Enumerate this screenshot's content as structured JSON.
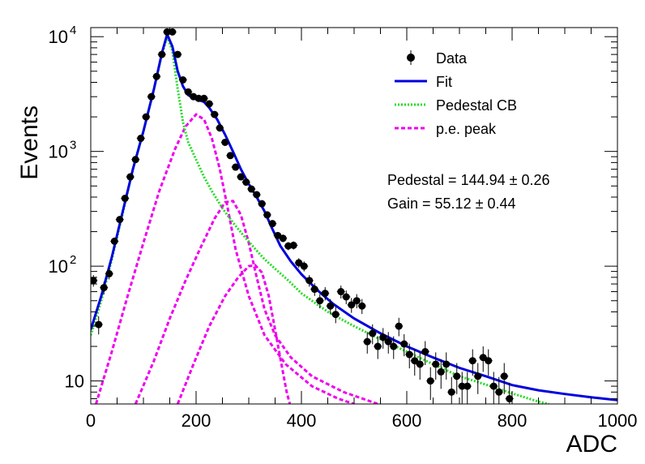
{
  "chart_data": {
    "type": "scatter",
    "title": "",
    "xlabel": "ADC",
    "ylabel": "Events",
    "xlim": [
      0,
      1000
    ],
    "ylim": [
      6.3,
      12000
    ],
    "yscale": "log",
    "grid": false,
    "legend_position": "top-right",
    "x_ticks": [
      {
        "value": 0,
        "label": "0"
      },
      {
        "value": 200,
        "label": "200"
      },
      {
        "value": 400,
        "label": "400"
      },
      {
        "value": 600,
        "label": "600"
      },
      {
        "value": 800,
        "label": "800"
      },
      {
        "value": 1000,
        "label": "1000"
      }
    ],
    "y_ticks": [
      {
        "value": 10,
        "base": "10",
        "exp": ""
      },
      {
        "value": 100,
        "base": "10",
        "exp": "2"
      },
      {
        "value": 1000,
        "base": "10",
        "exp": "3"
      },
      {
        "value": 10000,
        "base": "10",
        "exp": "4"
      }
    ],
    "legend": [
      {
        "label": "Data",
        "style": "marker",
        "color": "#000000"
      },
      {
        "label": "Fit",
        "style": "solid",
        "color": "#0000dd"
      },
      {
        "label": "Pedestal CB",
        "style": "dotted",
        "color": "#22dd22"
      },
      {
        "label": "p.e. peak",
        "style": "dashed",
        "color": "#ee00ee"
      }
    ],
    "annotations": [
      "Pedestal = 144.94 ± 0.26",
      "Gain = 55.12 ± 0.44"
    ],
    "data": {
      "name": "Data",
      "color": "#000000",
      "points": [
        [
          5,
          75
        ],
        [
          15,
          31
        ],
        [
          25,
          65
        ],
        [
          35,
          86
        ],
        [
          45,
          165
        ],
        [
          55,
          255
        ],
        [
          65,
          390
        ],
        [
          75,
          600
        ],
        [
          85,
          850
        ],
        [
          95,
          1300
        ],
        [
          105,
          2000
        ],
        [
          115,
          3000
        ],
        [
          125,
          4500
        ],
        [
          135,
          7000
        ],
        [
          145,
          11000
        ],
        [
          155,
          11000
        ],
        [
          165,
          7000
        ],
        [
          175,
          4200
        ],
        [
          185,
          3300
        ],
        [
          195,
          3000
        ],
        [
          205,
          2900
        ],
        [
          215,
          2900
        ],
        [
          225,
          2600
        ],
        [
          235,
          2100
        ],
        [
          245,
          1600
        ],
        [
          255,
          1200
        ],
        [
          265,
          920
        ],
        [
          275,
          730
        ],
        [
          285,
          600
        ],
        [
          295,
          540
        ],
        [
          305,
          470
        ],
        [
          315,
          420
        ],
        [
          325,
          350
        ],
        [
          335,
          280
        ],
        [
          345,
          235
        ],
        [
          355,
          185
        ],
        [
          365,
          175
        ],
        [
          375,
          150
        ],
        [
          385,
          152
        ],
        [
          395,
          107
        ],
        [
          405,
          100
        ],
        [
          415,
          75
        ],
        [
          425,
          63
        ],
        [
          435,
          50
        ],
        [
          445,
          58
        ],
        [
          455,
          45
        ],
        [
          465,
          38
        ],
        [
          475,
          60
        ],
        [
          485,
          54
        ],
        [
          495,
          46
        ],
        [
          505,
          50
        ],
        [
          515,
          45
        ],
        [
          525,
          22
        ],
        [
          535,
          26
        ],
        [
          545,
          20
        ],
        [
          555,
          24
        ],
        [
          565,
          22
        ],
        [
          575,
          20
        ],
        [
          585,
          30
        ],
        [
          595,
          21
        ],
        [
          605,
          17
        ],
        [
          615,
          15
        ],
        [
          625,
          14
        ],
        [
          635,
          18
        ],
        [
          645,
          10
        ],
        [
          655,
          14
        ],
        [
          665,
          12
        ],
        [
          675,
          14
        ],
        [
          685,
          8
        ],
        [
          695,
          11
        ],
        [
          705,
          9
        ],
        [
          715,
          9
        ],
        [
          725,
          15
        ],
        [
          735,
          11
        ],
        [
          745,
          16
        ],
        [
          755,
          15
        ],
        [
          765,
          9
        ],
        [
          775,
          8
        ],
        [
          785,
          11
        ],
        [
          795,
          7
        ]
      ]
    },
    "fit": {
      "name": "Fit",
      "color": "#0000dd",
      "points": [
        [
          0,
          28
        ],
        [
          20,
          55
        ],
        [
          40,
          120
        ],
        [
          60,
          290
        ],
        [
          80,
          700
        ],
        [
          100,
          1500
        ],
        [
          120,
          3500
        ],
        [
          135,
          7200
        ],
        [
          145,
          10500
        ],
        [
          155,
          8200
        ],
        [
          165,
          5000
        ],
        [
          175,
          3700
        ],
        [
          185,
          3100
        ],
        [
          195,
          2900
        ],
        [
          205,
          2800
        ],
        [
          215,
          2700
        ],
        [
          225,
          2400
        ],
        [
          240,
          1900
        ],
        [
          255,
          1400
        ],
        [
          270,
          1000
        ],
        [
          285,
          700
        ],
        [
          300,
          520
        ],
        [
          315,
          400
        ],
        [
          330,
          300
        ],
        [
          345,
          210
        ],
        [
          360,
          150
        ],
        [
          380,
          110
        ],
        [
          400,
          85
        ],
        [
          430,
          62
        ],
        [
          460,
          47
        ],
        [
          500,
          35
        ],
        [
          550,
          26
        ],
        [
          600,
          20
        ],
        [
          650,
          16
        ],
        [
          700,
          13
        ],
        [
          750,
          11
        ],
        [
          800,
          9.2
        ],
        [
          850,
          8.3
        ],
        [
          900,
          7.7
        ],
        [
          950,
          7.2
        ],
        [
          1000,
          6.8
        ]
      ]
    },
    "pedestal_cb": {
      "name": "Pedestal CB",
      "color": "#22dd22",
      "points": [
        [
          0,
          25
        ],
        [
          20,
          50
        ],
        [
          40,
          115
        ],
        [
          60,
          280
        ],
        [
          80,
          700
        ],
        [
          100,
          1500
        ],
        [
          120,
          3500
        ],
        [
          135,
          7000
        ],
        [
          145,
          10000
        ],
        [
          155,
          7500
        ],
        [
          165,
          3500
        ],
        [
          175,
          1800
        ],
        [
          185,
          1200
        ],
        [
          200,
          850
        ],
        [
          215,
          600
        ],
        [
          230,
          450
        ],
        [
          250,
          320
        ],
        [
          270,
          240
        ],
        [
          290,
          185
        ],
        [
          310,
          145
        ],
        [
          330,
          115
        ],
        [
          350,
          95
        ],
        [
          375,
          75
        ],
        [
          400,
          58
        ],
        [
          450,
          40
        ],
        [
          500,
          30
        ],
        [
          550,
          23
        ],
        [
          600,
          18
        ],
        [
          650,
          14
        ],
        [
          700,
          11
        ],
        [
          750,
          9.3
        ],
        [
          800,
          7.8
        ],
        [
          850,
          6.6
        ],
        [
          870,
          6.3
        ]
      ]
    },
    "pe_peaks": [
      {
        "name": "p.e. peak",
        "color": "#ee00ee",
        "points": [
          [
            10,
            6.3
          ],
          [
            40,
            18
          ],
          [
            70,
            55
          ],
          [
            100,
            160
          ],
          [
            130,
            450
          ],
          [
            160,
            1050
          ],
          [
            180,
            1650
          ],
          [
            200,
            2100
          ],
          [
            215,
            1900
          ],
          [
            230,
            1300
          ],
          [
            245,
            700
          ],
          [
            260,
            320
          ],
          [
            275,
            140
          ],
          [
            300,
            55
          ],
          [
            330,
            25
          ],
          [
            370,
            14
          ],
          [
            420,
            9
          ],
          [
            470,
            7
          ],
          [
            500,
            6.3
          ]
        ]
      },
      {
        "name": "p.e. peak",
        "color": "#ee00ee",
        "points": [
          [
            85,
            6.3
          ],
          [
            120,
            15
          ],
          [
            150,
            35
          ],
          [
            180,
            75
          ],
          [
            210,
            150
          ],
          [
            235,
            260
          ],
          [
            255,
            360
          ],
          [
            270,
            370
          ],
          [
            285,
            280
          ],
          [
            300,
            160
          ],
          [
            315,
            80
          ],
          [
            330,
            42
          ],
          [
            350,
            25
          ],
          [
            380,
            16
          ],
          [
            420,
            11
          ],
          [
            480,
            8
          ],
          [
            545,
            6.3
          ]
        ]
      },
      {
        "name": "p.e. peak",
        "color": "#ee00ee",
        "points": [
          [
            165,
            6.3
          ],
          [
            195,
            14
          ],
          [
            225,
            30
          ],
          [
            255,
            55
          ],
          [
            280,
            80
          ],
          [
            300,
            100
          ],
          [
            312,
            102
          ],
          [
            325,
            88
          ],
          [
            338,
            55
          ],
          [
            350,
            28
          ],
          [
            362,
            14
          ],
          [
            372,
            8
          ],
          [
            378,
            6.3
          ]
        ]
      }
    ]
  }
}
